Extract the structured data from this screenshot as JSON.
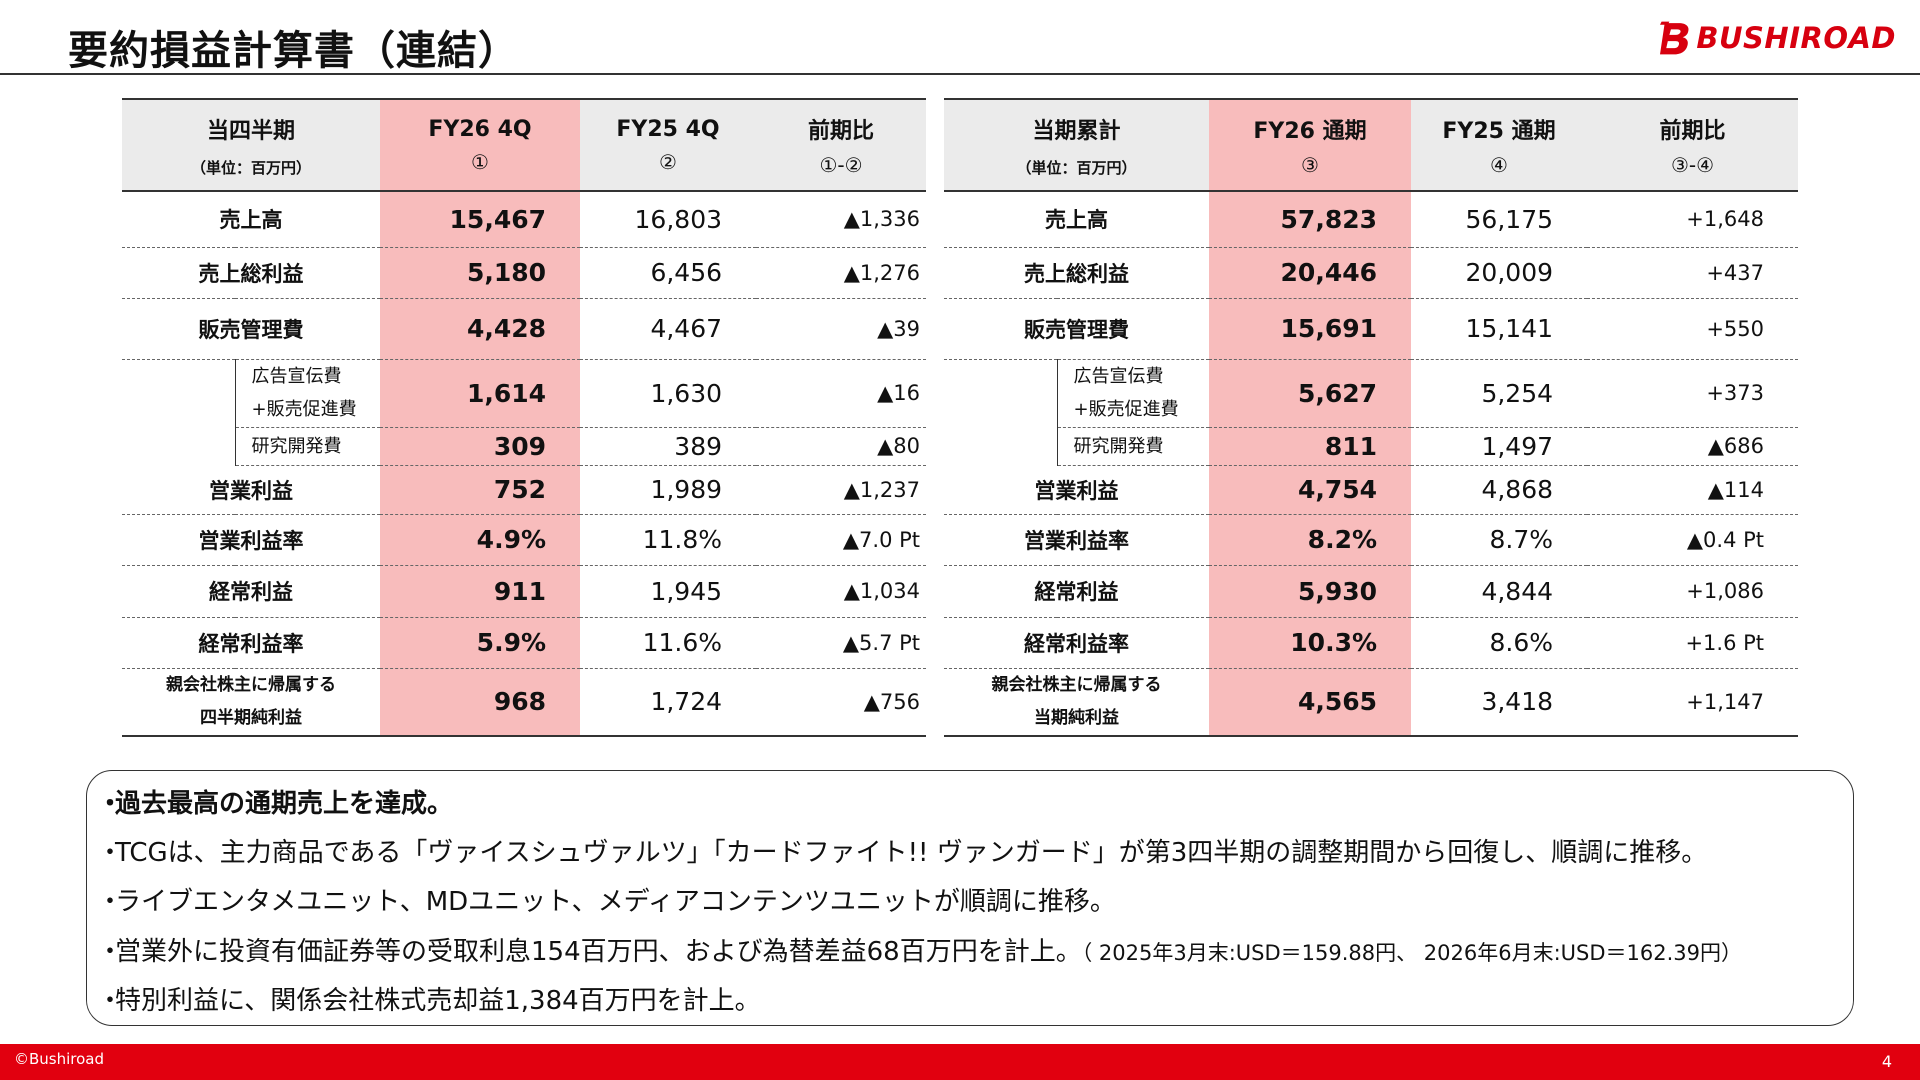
{
  "title": "要約損益計算書（連結）",
  "logo": {
    "text": "BUSHIROAD"
  },
  "left_table": {
    "header": {
      "label": "当四半期",
      "unit": "（単位：百万円）",
      "col_current": "FY26 4Q",
      "col_current_mark": "①",
      "col_prev": "FY25 4Q",
      "col_prev_mark": "②",
      "col_diff": "前期比",
      "col_diff_mark": "①-②"
    },
    "rows": [
      {
        "label": "売上高",
        "current": "15,467",
        "prev": "16,803",
        "diff": "▲1,336"
      },
      {
        "label": "売上総利益",
        "current": "5,180",
        "prev": "6,456",
        "diff": "▲1,276"
      },
      {
        "label": "販売管理費",
        "current": "4,428",
        "prev": "4,467",
        "diff": "▲39"
      },
      {
        "label_line1": "広告宣伝費",
        "label_line2": "+販売促進費",
        "current": "1,614",
        "prev": "1,630",
        "diff": "▲16"
      },
      {
        "label": "研究開発費",
        "current": "309",
        "prev": "389",
        "diff": "▲80"
      },
      {
        "label": "営業利益",
        "current": "752",
        "prev": "1,989",
        "diff": "▲1,237"
      },
      {
        "label": "営業利益率",
        "current": "4.9%",
        "prev": "11.8%",
        "diff": "▲7.0 Pt"
      },
      {
        "label": "経常利益",
        "current": "911",
        "prev": "1,945",
        "diff": "▲1,034"
      },
      {
        "label": "経常利益率",
        "current": "5.9%",
        "prev": "11.6%",
        "diff": "▲5.7 Pt"
      },
      {
        "label_line1": "親会社株主に帰属する",
        "label_line2": "四半期純利益",
        "current": "968",
        "prev": "1,724",
        "diff": "▲756"
      }
    ]
  },
  "right_table": {
    "header": {
      "label": "当期累計",
      "unit": "（単位：百万円）",
      "col_current": "FY26 通期",
      "col_current_mark": "③",
      "col_prev": "FY25 通期",
      "col_prev_mark": "④",
      "col_diff": "前期比",
      "col_diff_mark": "③-④"
    },
    "rows": [
      {
        "label": "売上高",
        "current": "57,823",
        "prev": "56,175",
        "diff": "+1,648"
      },
      {
        "label": "売上総利益",
        "current": "20,446",
        "prev": "20,009",
        "diff": "+437"
      },
      {
        "label": "販売管理費",
        "current": "15,691",
        "prev": "15,141",
        "diff": "+550"
      },
      {
        "label_line1": "広告宣伝費",
        "label_line2": "+販売促進費",
        "current": "5,627",
        "prev": "5,254",
        "diff": "+373"
      },
      {
        "label": "研究開発費",
        "current": "811",
        "prev": "1,497",
        "diff": "▲686"
      },
      {
        "label": "営業利益",
        "current": "4,754",
        "prev": "4,868",
        "diff": "▲114"
      },
      {
        "label": "営業利益率",
        "current": "8.2%",
        "prev": "8.7%",
        "diff": "▲0.4 Pt"
      },
      {
        "label": "経常利益",
        "current": "5,930",
        "prev": "4,844",
        "diff": "+1,086"
      },
      {
        "label": "経常利益率",
        "current": "10.3%",
        "prev": "8.6%",
        "diff": "+1.6 Pt"
      },
      {
        "label_line1": "親会社株主に帰属する",
        "label_line2": "当期純利益",
        "current": "4,565",
        "prev": "3,418",
        "diff": "+1,147"
      }
    ]
  },
  "notes": {
    "bullet": "・",
    "items": [
      "過去最高の通期売上を達成。",
      "TCGは、主力商品である「ヴァイスシュヴァルツ」「カードファイト!! ヴァンガード」が第3四半期の調整期間から回復し、順調に推移。",
      "ライブエンタメユニット、MDユニット、メディアコンテンツユニットが順調に推移。",
      "営業外に投資有価証券等の受取利息154百万円、および為替差益68百万円を計上。",
      "特別利益に、関係会社株式売却益1,384百万円を計上。"
    ],
    "fx_note": "（ 2025年3月末:USD＝159.88円、 2026年6月末:USD＝162.39円）"
  },
  "footer": {
    "copyright": "©Bushiroad",
    "page": "4"
  },
  "colors": {
    "brand_red": "#e1000f",
    "highlight": "#f8bcbc",
    "header_gray": "#ebebeb"
  }
}
